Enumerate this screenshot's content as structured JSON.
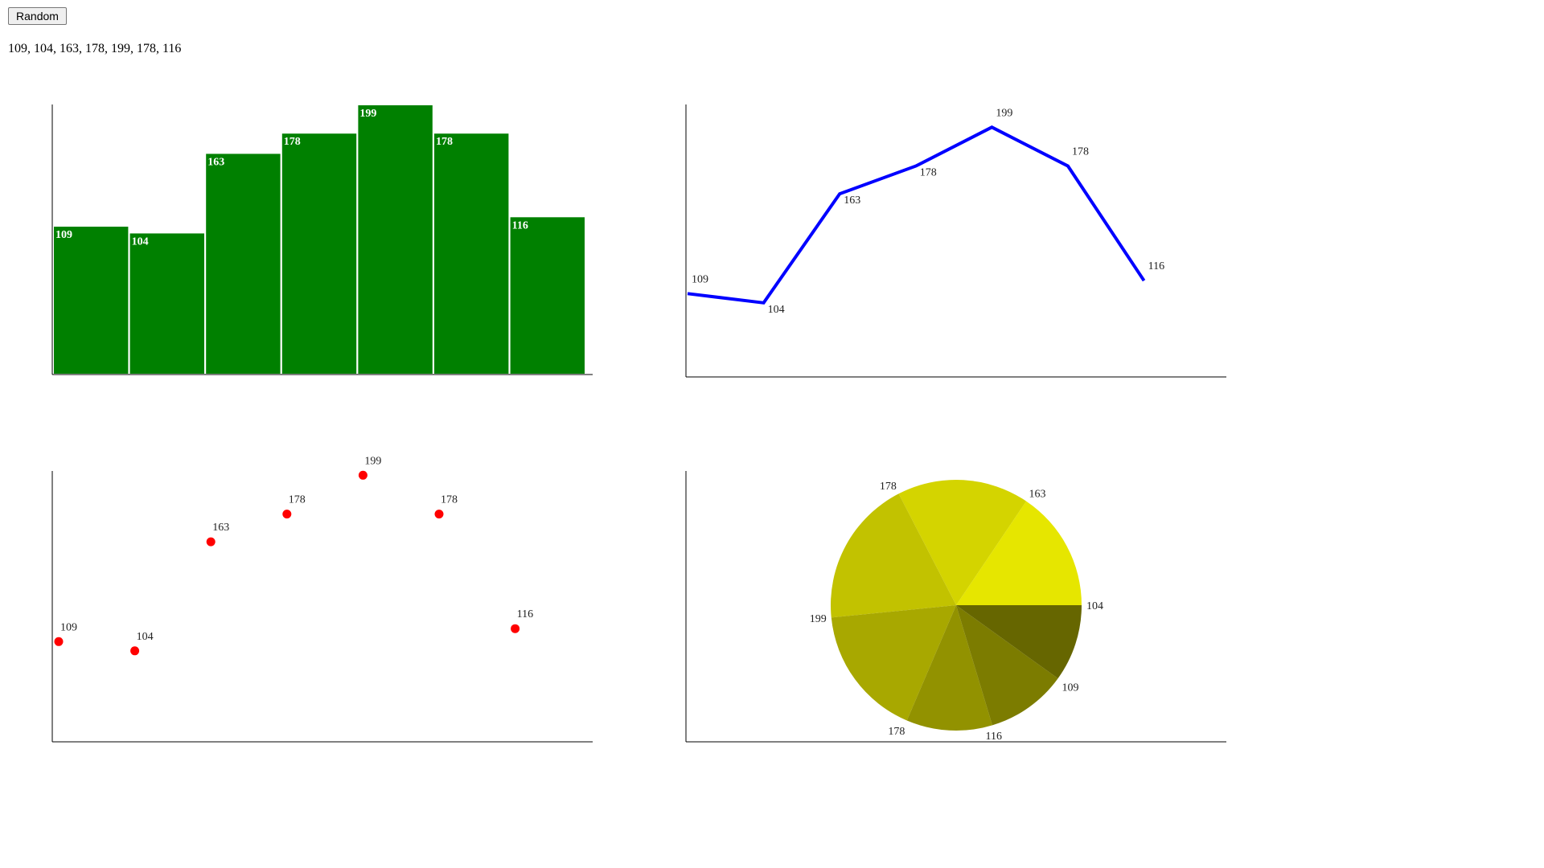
{
  "controls": {
    "random_label": "Random"
  },
  "values_text": "109, 104, 163, 178, 199, 178, 116",
  "colors": {
    "bar": "#008000",
    "line": "#0000ff",
    "scatter": "#ff0000",
    "pie": [
      "#e6e600",
      "#d4d400",
      "#c2c200",
      "#a8a800",
      "#929200",
      "#7c7c00",
      "#666600"
    ]
  },
  "chart_data": [
    {
      "type": "bar",
      "values": [
        109,
        104,
        163,
        178,
        199,
        178,
        116
      ],
      "ylim": [
        0,
        199
      ]
    },
    {
      "type": "line",
      "values": [
        109,
        104,
        163,
        178,
        199,
        178,
        116
      ]
    },
    {
      "type": "scatter",
      "values": [
        109,
        104,
        163,
        178,
        199,
        178,
        116
      ]
    },
    {
      "type": "pie",
      "values": [
        163,
        178,
        199,
        178,
        116,
        109,
        104
      ]
    }
  ]
}
